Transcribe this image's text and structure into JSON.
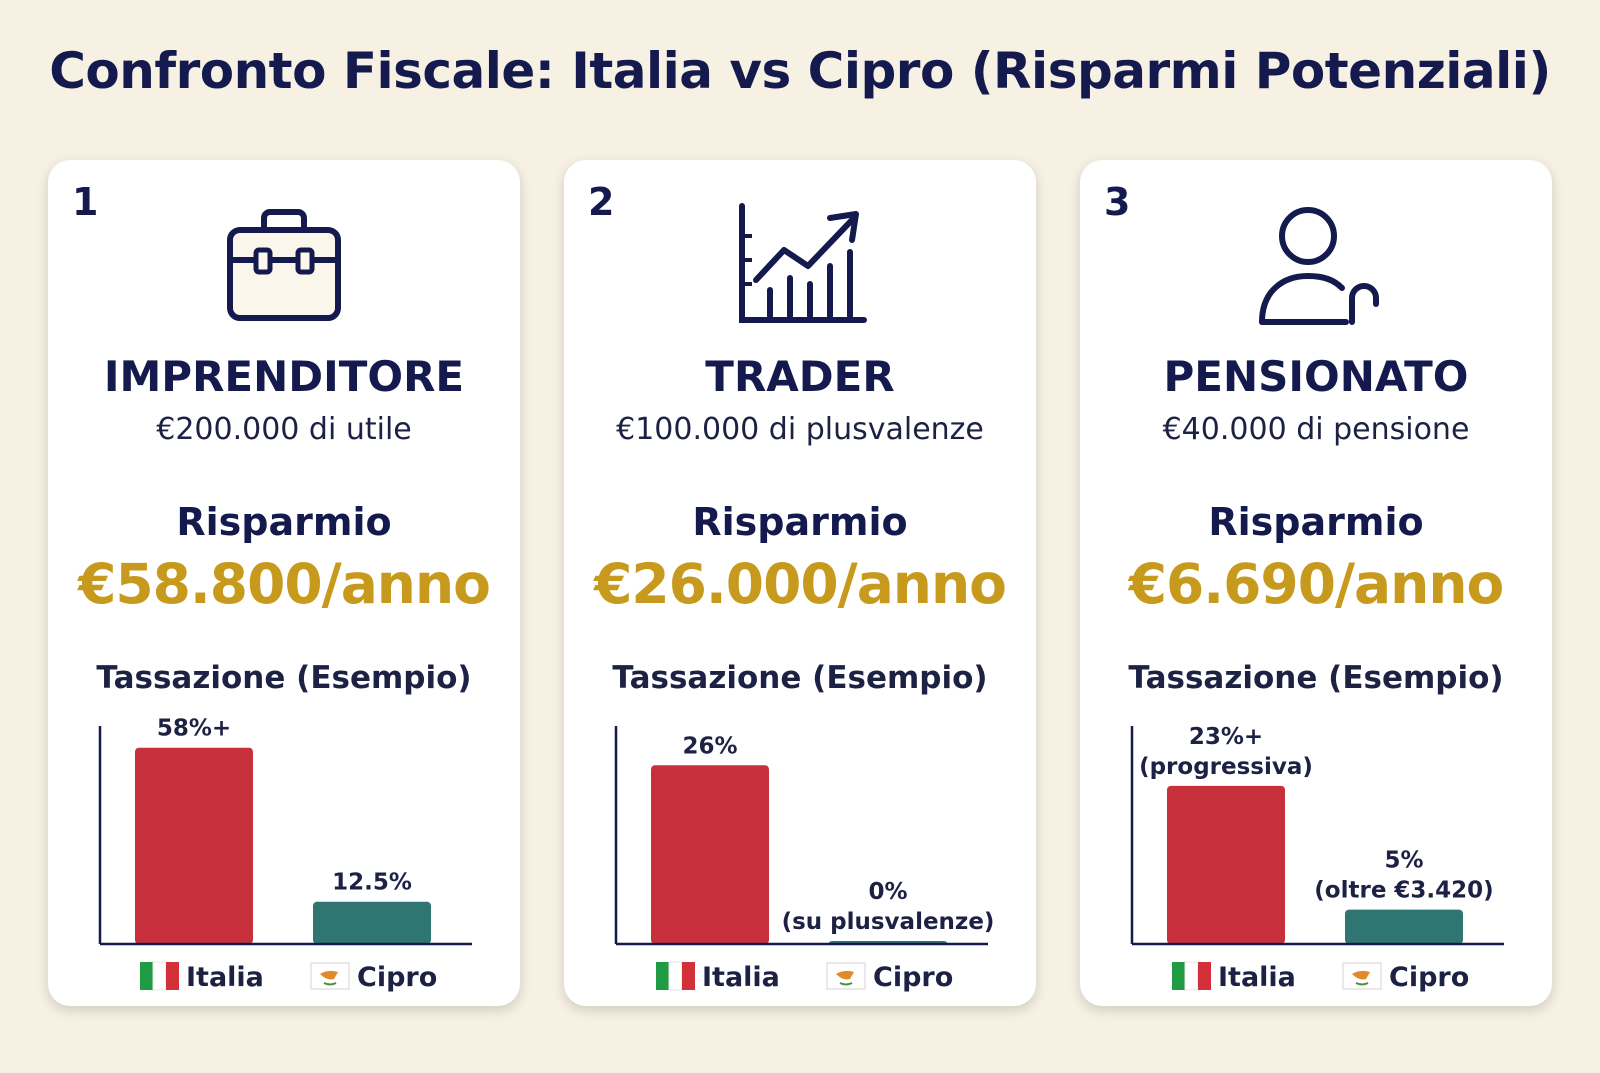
{
  "title": "Confronto Fiscale: Italia vs Cipro (Risparmi Potenziali)",
  "colors": {
    "italia_bar": "#c8313b",
    "cipro_bar": "#2f7571",
    "savings": "#c79a1d",
    "text": "#141a4d",
    "background": "#f6f1e3"
  },
  "legend": {
    "italia": "Italia",
    "cipro": "Cipro"
  },
  "cards": [
    {
      "number": "1",
      "icon": "briefcase-icon",
      "title": "IMPRENDITORE",
      "subtitle": "€200.000 di utile",
      "saving_label": "Risparmio",
      "saving_value": "€58.800/anno",
      "chart_title": "Tassazione (Esempio)"
    },
    {
      "number": "2",
      "icon": "trend-chart-icon",
      "title": "TRADER",
      "subtitle": "€100.000 di plusvalenze",
      "saving_label": "Risparmio",
      "saving_value": "€26.000/anno",
      "chart_title": "Tassazione (Esempio)"
    },
    {
      "number": "3",
      "icon": "person-icon",
      "title": "PENSIONATO",
      "subtitle": "€40.000 di pensione",
      "saving_label": "Risparmio",
      "saving_value": "€6.690/anno",
      "chart_title": "Tassazione (Esempio)"
    }
  ],
  "chart_data": [
    {
      "type": "bar",
      "title": "Tassazione (Esempio)",
      "categories": [
        "Italia",
        "Cipro"
      ],
      "values": [
        58,
        12.5
      ],
      "value_labels": [
        [
          "58%+"
        ],
        [
          "12.5%"
        ]
      ],
      "ylim": [
        0,
        65
      ]
    },
    {
      "type": "bar",
      "title": "Tassazione (Esempio)",
      "categories": [
        "Italia",
        "Cipro"
      ],
      "values": [
        26,
        0
      ],
      "value_labels": [
        [
          "26%"
        ],
        [
          "0%",
          "(su plusvalenze)"
        ]
      ],
      "ylim": [
        0,
        32
      ]
    },
    {
      "type": "bar",
      "title": "Tassazione (Esempio)",
      "categories": [
        "Italia",
        "Cipro"
      ],
      "values": [
        23,
        5
      ],
      "value_labels": [
        [
          "23%+",
          "(progressiva)"
        ],
        [
          "5%",
          "(oltre €3.420)"
        ]
      ],
      "ylim": [
        0,
        32
      ]
    }
  ]
}
